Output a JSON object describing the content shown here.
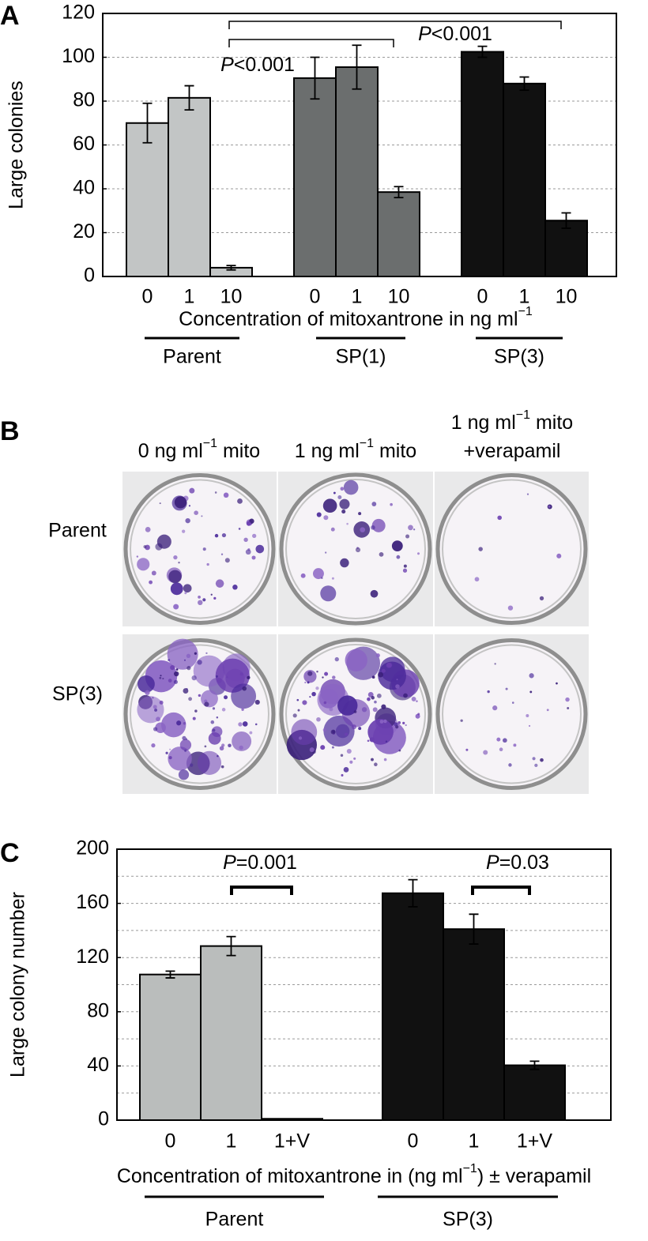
{
  "chart_data": [
    {
      "type": "bar",
      "panel_label": "A",
      "ylabel": "Large colonies",
      "xlabel": {
        "before": "Concentration of mitoxantrone in ng ml",
        "sup": "−1"
      },
      "categories": [
        "0",
        "1",
        "10"
      ],
      "series": [
        {
          "name": "Parent",
          "color": "#c2c5c5",
          "values": [
            70,
            81.5,
            4
          ],
          "errors": [
            9,
            5.5,
            1
          ]
        },
        {
          "name": "SP(1)",
          "color": "#6b6e6e",
          "values": [
            90.5,
            95.5,
            38.5
          ],
          "errors": [
            9.5,
            10,
            2.5
          ]
        },
        {
          "name": "SP(3)",
          "color": "#111111",
          "values": [
            102.5,
            88,
            25.5
          ],
          "errors": [
            2.5,
            3,
            3.5
          ]
        }
      ],
      "ylim": [
        0,
        120
      ],
      "yticks": [
        0,
        20,
        40,
        60,
        80,
        100,
        120
      ],
      "grid": true,
      "annotations": [
        {
          "italic": "P",
          "text": "<0.001"
        },
        {
          "italic": "P",
          "text": "<0.001"
        }
      ]
    },
    {
      "type": "bar",
      "panel_label": "C",
      "ylabel": "Large colony number",
      "xlabel": {
        "before": "Concentration of mitoxantrone in (ng ml",
        "sup": "−1",
        "after": ") ± verapamil"
      },
      "categories": [
        "0",
        "1",
        "1+V"
      ],
      "series": [
        {
          "name": "Parent",
          "color": "#babdbc",
          "values": [
            107.5,
            128.5,
            1
          ],
          "errors": [
            2.5,
            7,
            null
          ]
        },
        {
          "name": "SP(3)",
          "color": "#111111",
          "values": [
            167.5,
            141,
            40.5
          ],
          "errors": [
            10,
            11,
            3
          ]
        }
      ],
      "ylim": [
        0,
        200
      ],
      "yticks": [
        0,
        40,
        80,
        120,
        160,
        200
      ],
      "minor_yticks": [
        20,
        60,
        100,
        140,
        180
      ],
      "grid": true,
      "annotations": [
        {
          "italic": "P",
          "text": "=0.001"
        },
        {
          "italic": "P",
          "text": "=0.03"
        }
      ]
    }
  ],
  "panel_b": {
    "panel_label": "B",
    "columns": [
      {
        "lines": [
          {
            "before": "0 ng ml",
            "sup": "−1",
            "after": " mito"
          }
        ]
      },
      {
        "lines": [
          {
            "before": "1 ng ml",
            "sup": "−1",
            "after": " mito"
          }
        ]
      },
      {
        "lines": [
          {
            "before": "1 ng ml",
            "sup": "−1",
            "after": " mito"
          },
          {
            "before": "+verapamil"
          }
        ]
      }
    ],
    "rows": [
      "Parent",
      "SP(3)"
    ]
  }
}
